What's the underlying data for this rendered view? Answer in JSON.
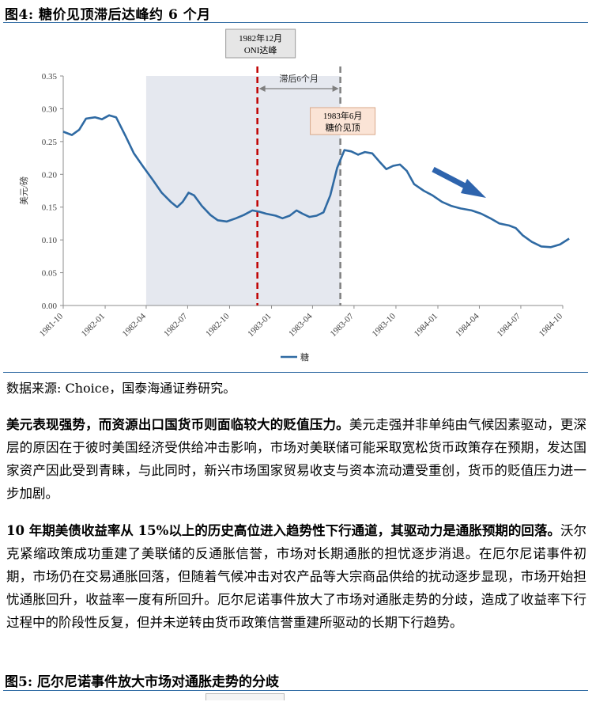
{
  "figure4": {
    "title": "图4: 糖价见顶滞后达峰约 6 个月"
  },
  "chart_data": {
    "type": "line",
    "ylabel": "美元/磅",
    "ylim": [
      0,
      0.35
    ],
    "yticks": [
      "0.00",
      "0.05",
      "0.10",
      "0.15",
      "0.20",
      "0.25",
      "0.30",
      "0.35"
    ],
    "xticks": [
      "1981-10",
      "1982-01",
      "1982-04",
      "1982-07",
      "1982-10",
      "1983-01",
      "1983-04",
      "1983-07",
      "1983-10",
      "1984-01",
      "1984-04",
      "1984-07",
      "1984-10"
    ],
    "x_range": [
      "1981-10",
      "1984-10"
    ],
    "series": [
      {
        "name": "糖",
        "color": "#2f6aa3",
        "points": [
          [
            "1981-10-01",
            0.265
          ],
          [
            "1981-10-20",
            0.26
          ],
          [
            "1981-11-05",
            0.268
          ],
          [
            "1981-11-20",
            0.285
          ],
          [
            "1981-12-10",
            0.287
          ],
          [
            "1981-12-25",
            0.284
          ],
          [
            "1982-01-10",
            0.29
          ],
          [
            "1982-01-25",
            0.287
          ],
          [
            "1982-02-15",
            0.258
          ],
          [
            "1982-03-05",
            0.232
          ],
          [
            "1982-03-25",
            0.212
          ],
          [
            "1982-04-15",
            0.192
          ],
          [
            "1982-05-05",
            0.172
          ],
          [
            "1982-05-25",
            0.158
          ],
          [
            "1982-06-08",
            0.15
          ],
          [
            "1982-06-20",
            0.158
          ],
          [
            "1982-07-03",
            0.172
          ],
          [
            "1982-07-15",
            0.168
          ],
          [
            "1982-08-01",
            0.152
          ],
          [
            "1982-08-20",
            0.138
          ],
          [
            "1982-09-05",
            0.13
          ],
          [
            "1982-09-25",
            0.128
          ],
          [
            "1982-10-15",
            0.133
          ],
          [
            "1982-11-01",
            0.138
          ],
          [
            "1982-11-20",
            0.145
          ],
          [
            "1982-12-05",
            0.143
          ],
          [
            "1982-12-20",
            0.14
          ],
          [
            "1983-01-10",
            0.137
          ],
          [
            "1983-01-25",
            0.133
          ],
          [
            "1983-02-10",
            0.137
          ],
          [
            "1983-02-25",
            0.145
          ],
          [
            "1983-03-10",
            0.14
          ],
          [
            "1983-03-25",
            0.135
          ],
          [
            "1983-04-10",
            0.137
          ],
          [
            "1983-04-25",
            0.142
          ],
          [
            "1983-05-10",
            0.168
          ],
          [
            "1983-05-25",
            0.21
          ],
          [
            "1983-06-10",
            0.237
          ],
          [
            "1983-06-25",
            0.235
          ],
          [
            "1983-07-10",
            0.23
          ],
          [
            "1983-07-25",
            0.234
          ],
          [
            "1983-08-10",
            0.232
          ],
          [
            "1983-08-25",
            0.22
          ],
          [
            "1983-09-10",
            0.208
          ],
          [
            "1983-09-25",
            0.213
          ],
          [
            "1983-10-10",
            0.215
          ],
          [
            "1983-10-25",
            0.205
          ],
          [
            "1983-11-10",
            0.185
          ],
          [
            "1983-12-01",
            0.175
          ],
          [
            "1983-12-20",
            0.168
          ],
          [
            "1984-01-10",
            0.158
          ],
          [
            "1984-01-30",
            0.152
          ],
          [
            "1984-02-20",
            0.148
          ],
          [
            "1984-03-15",
            0.145
          ],
          [
            "1984-04-05",
            0.14
          ],
          [
            "1984-04-25",
            0.133
          ],
          [
            "1984-05-15",
            0.125
          ],
          [
            "1984-06-05",
            0.122
          ],
          [
            "1984-06-20",
            0.118
          ],
          [
            "1984-07-05",
            0.107
          ],
          [
            "1984-07-25",
            0.097
          ],
          [
            "1984-08-15",
            0.09
          ],
          [
            "1984-09-05",
            0.089
          ],
          [
            "1984-09-25",
            0.093
          ],
          [
            "1984-10-15",
            0.102
          ]
        ]
      }
    ],
    "shaded_range": [
      "1982-04-01",
      "1983-06-01"
    ],
    "vlines": [
      {
        "x": "1982-12-01",
        "color": "#c00000",
        "style": "dashed"
      },
      {
        "x": "1983-06-01",
        "color": "#7f7f7f",
        "style": "dashed"
      }
    ],
    "annotations": {
      "oni_box": {
        "line1": "1982年12月",
        "line2": "ONI达峰"
      },
      "lag_label": "滞后6个月",
      "sugar_box": {
        "line1": "1983年6月",
        "line2": "糖价见顶"
      }
    },
    "trend_arrow": "down",
    "legend_position": "bottom-center",
    "grid": false
  },
  "source": "数据来源: Choice，国泰海通证券研究。",
  "paragraph1": {
    "bold": "美元表现强势，而资源出口国货币则面临较大的贬值压力。",
    "text": "美元走强并非单纯由气候因素驱动，更深层的原因在于彼时美国经济受供给冲击影响，市场对美联储可能采取宽松货币政策存在预期，发达国家资产因此受到青睐，与此同时，新兴市场国家贸易收支与资本流动遭受重创，货币的贬值压力进一步加剧。"
  },
  "paragraph2": {
    "bold": "10 年期美债收益率从 15%以上的历史高位进入趋势性下行通道，其驱动力是通胀预期的回落。",
    "text": "沃尔克紧缩政策成功重建了美联储的反通胀信誉，市场对长期通胀的担忧逐步消退。在厄尔尼诺事件初期，市场仍在交易通胀回落，但随着气候冲击对农产品等大宗商品供给的扰动逐步显现，市场开始担忧通胀回升，收益率一度有所回升。厄尔尼诺事件放大了市场对通胀走势的分歧，造成了收益率下行过程中的阶段性反复，但并未逆转由货币政策信誉重建所驱动的长期下行趋势。"
  },
  "figure5": {
    "title": "图5: 厄尔尼诺事件放大市场对通胀走势的分歧"
  }
}
